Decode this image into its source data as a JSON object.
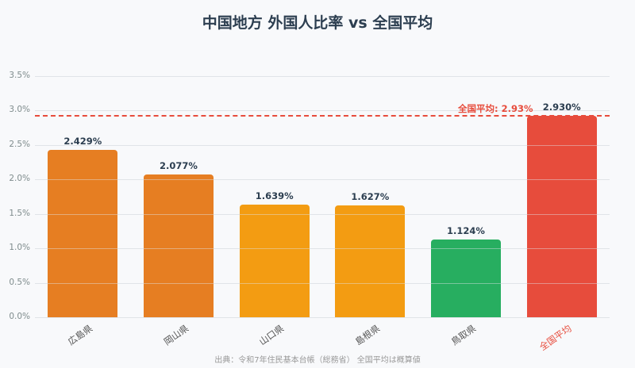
{
  "chart_data": {
    "type": "bar",
    "title": "中国地方 外国人比率 vs 全国平均",
    "categories": [
      "広島県",
      "岡山県",
      "山口県",
      "島根県",
      "鳥取県",
      "全国平均"
    ],
    "values": [
      2.429,
      2.077,
      1.639,
      1.627,
      1.124,
      2.93
    ],
    "value_labels": [
      "2.429%",
      "2.077%",
      "1.639%",
      "1.627%",
      "1.124%",
      "2.930%"
    ],
    "bar_colors": [
      "#e67e22",
      "#e67e22",
      "#f39c12",
      "#f39c12",
      "#27ae60",
      "#e74c3c"
    ],
    "xlabel": "",
    "ylabel": "",
    "ylim": [
      0,
      3.5
    ],
    "yticks": [
      "0.0%",
      "0.5%",
      "1.0%",
      "1.5%",
      "2.0%",
      "2.5%",
      "3.0%",
      "3.5%"
    ],
    "grid": true,
    "reference_line": {
      "value": 2.93,
      "label": "全国平均: 2.93%",
      "color": "#e74c3c",
      "style": "dashed"
    },
    "source_note": "出典：令和7年住民基本台帳（総務省） 全国平均は概算値"
  }
}
